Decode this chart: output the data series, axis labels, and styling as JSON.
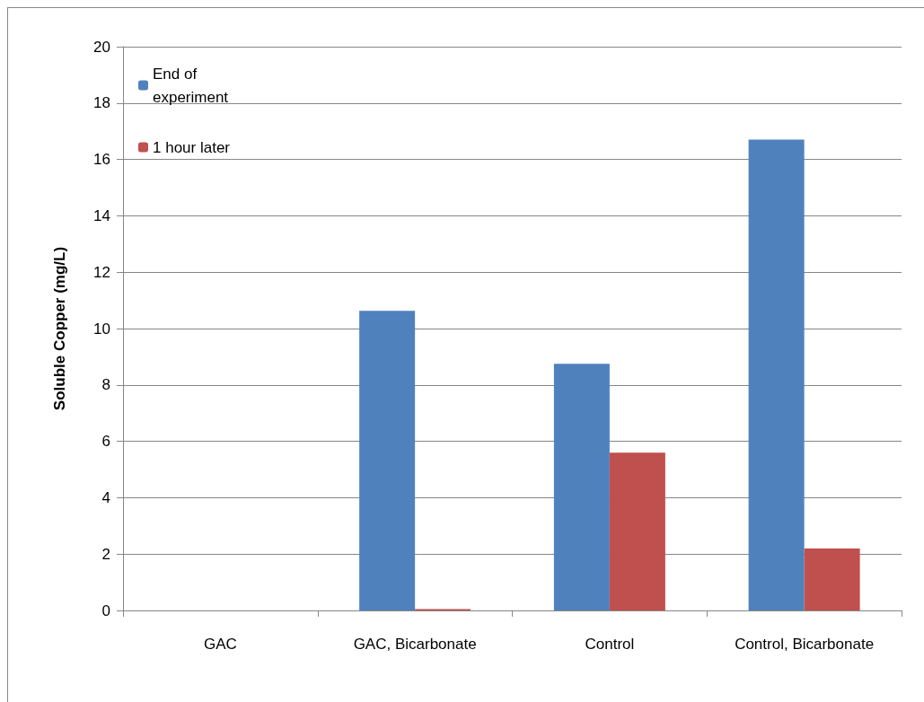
{
  "chart_data": {
    "type": "bar",
    "ylabel": "Soluble Copper (mg/L)",
    "categories": [
      "GAC",
      "GAC, Bicarbonate",
      "Control",
      "Control, Bicarbonate"
    ],
    "series": [
      {
        "name": "End of experiment",
        "color": "#4f81bd",
        "values": [
          0,
          10.63,
          8.75,
          16.7
        ]
      },
      {
        "name": "1 hour later",
        "color": "#c0504d",
        "values": [
          0,
          0.05,
          5.6,
          2.2
        ]
      }
    ],
    "ylim": [
      0,
      20
    ],
    "yticks": [
      0,
      2,
      4,
      6,
      8,
      10,
      12,
      14,
      16,
      18,
      20
    ],
    "grid": "y",
    "legend": "top left"
  }
}
